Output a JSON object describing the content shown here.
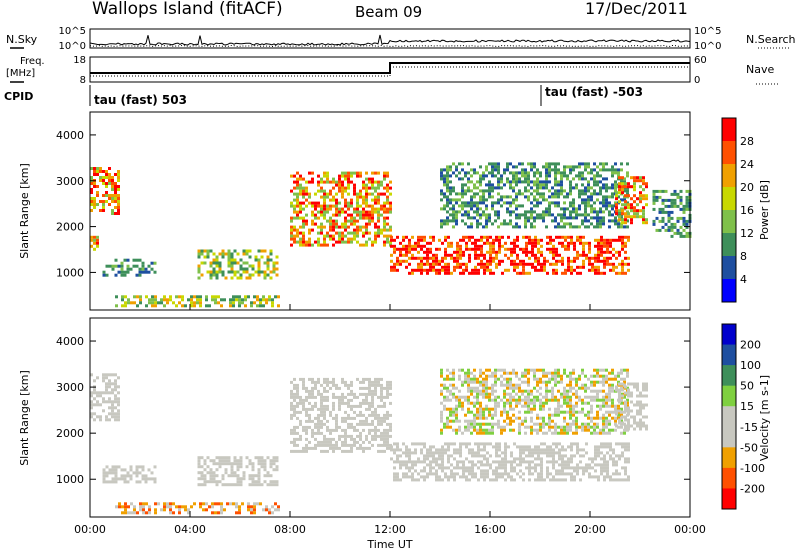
{
  "header": {
    "station": "Wallops Island (fitACF)",
    "beam": "Beam 09",
    "date": "17/Dec/2011"
  },
  "summary_panels": {
    "nsky_label": "N.Sky",
    "nsearch_label": "N.Search",
    "noise_ticks": [
      "10^5",
      "10^0"
    ],
    "freq_label_line1": "Freq.",
    "freq_label_line2": "[MHz]",
    "freq_ticks": [
      "18",
      "8"
    ],
    "nave_label": "Nave",
    "nave_ticks": [
      "60",
      "0"
    ],
    "cpid_label": "CPID",
    "cpid_segments": [
      "tau (fast) 503",
      "tau (fast) -503"
    ]
  },
  "x_axis": {
    "label": "Time UT",
    "ticks": [
      "00:00",
      "04:00",
      "08:00",
      "12:00",
      "16:00",
      "20:00",
      "00:00"
    ]
  },
  "colors": {
    "power": [
      "#0000ff",
      "#1e4fa0",
      "#3e8f5a",
      "#7fc04a",
      "#c8d800",
      "#f0a000",
      "#ff5000",
      "#ff0000"
    ],
    "velocity": [
      "#ff0000",
      "#ff5000",
      "#f0a000",
      "#c8c8c0",
      "#c8c8c0",
      "#7fd040",
      "#3e8f5a",
      "#1e4fa0",
      "#0000cc"
    ]
  },
  "chart_data": [
    {
      "type": "heatmap",
      "title": "",
      "xlabel": "",
      "ylabel": "Slant Range [km]",
      "yticks": [
        "1000",
        "2000",
        "3000",
        "4000"
      ],
      "xlim_hours": [
        0,
        24
      ],
      "ylim_km": [
        180,
        4500
      ],
      "colorbar": {
        "label": "Power [dB]",
        "ticks": [
          "28",
          "24",
          "20",
          "16",
          "12",
          "8",
          "4"
        ]
      },
      "regions": [
        {
          "t": [
            0.0,
            1.2
          ],
          "r": [
            2300,
            3300
          ],
          "level": "high"
        },
        {
          "t": [
            0.0,
            0.3
          ],
          "r": [
            1500,
            1800
          ],
          "level": "high"
        },
        {
          "t": [
            0.5,
            2.6
          ],
          "r": [
            950,
            1300
          ],
          "level": "low"
        },
        {
          "t": [
            4.3,
            7.5
          ],
          "r": [
            900,
            1500
          ],
          "level": "mid"
        },
        {
          "t": [
            1.0,
            7.6
          ],
          "r": [
            250,
            500
          ],
          "level": "mid"
        },
        {
          "t": [
            8.0,
            12.0
          ],
          "r": [
            1600,
            3200
          ],
          "level": "high"
        },
        {
          "t": [
            12.0,
            21.6
          ],
          "r": [
            1000,
            1800
          ],
          "level": "veryhigh"
        },
        {
          "t": [
            14.0,
            21.5
          ],
          "r": [
            2000,
            3400
          ],
          "level": "low"
        },
        {
          "t": [
            21.0,
            22.3
          ],
          "r": [
            2100,
            3100
          ],
          "level": "high"
        },
        {
          "t": [
            22.5,
            24.0
          ],
          "r": [
            1800,
            2800
          ],
          "level": "low"
        }
      ]
    },
    {
      "type": "heatmap",
      "title": "",
      "xlabel": "Time UT",
      "ylabel": "Slant Range [km]",
      "yticks": [
        "1000",
        "2000",
        "3000",
        "4000"
      ],
      "xlim_hours": [
        0,
        24
      ],
      "ylim_km": [
        180,
        4500
      ],
      "colorbar": {
        "label": "Velocity [m s-1]",
        "ticks": [
          "200",
          "100",
          "50",
          "15",
          "-15",
          "-50",
          "-100",
          "-200"
        ]
      },
      "regions": [
        {
          "t": [
            0.0,
            1.2
          ],
          "r": [
            2300,
            3300
          ],
          "level": "zero"
        },
        {
          "t": [
            0.5,
            2.6
          ],
          "r": [
            950,
            1300
          ],
          "level": "zero"
        },
        {
          "t": [
            4.3,
            7.5
          ],
          "r": [
            900,
            1500
          ],
          "level": "zero"
        },
        {
          "t": [
            1.0,
            7.6
          ],
          "r": [
            250,
            500
          ],
          "level": "negative"
        },
        {
          "t": [
            8.0,
            12.0
          ],
          "r": [
            1600,
            3200
          ],
          "level": "zero"
        },
        {
          "t": [
            12.0,
            21.6
          ],
          "r": [
            1000,
            1800
          ],
          "level": "zero"
        },
        {
          "t": [
            14.0,
            21.5
          ],
          "r": [
            2000,
            3400
          ],
          "level": "mixed"
        },
        {
          "t": [
            21.0,
            22.3
          ],
          "r": [
            2100,
            3100
          ],
          "level": "zero"
        }
      ]
    }
  ]
}
